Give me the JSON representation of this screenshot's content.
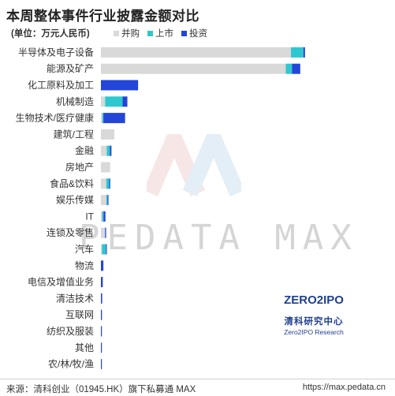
{
  "title": "本周整体事件行业披露金额对比",
  "unit_label": "(单位：万元人民币)",
  "footer": {
    "source": "来源：清科创业（01945.HK）旗下私募通 MAX",
    "url": "https://max.pedata.cn"
  },
  "watermark": {
    "text": "PEDATA MAX"
  },
  "brand": {
    "logo_text": "ZERO2IPO",
    "name_cn": "清科研究中心",
    "name_en": "Zero2IPO Research"
  },
  "colors": {
    "并购": "#d9d9d9",
    "上市": "#2fc7cf",
    "投资": "#2346d8"
  },
  "chart_data": {
    "type": "bar",
    "orientation": "horizontal",
    "stacked": true,
    "title": "本周整体事件行业披露金额对比",
    "unit": "(单位：万元人民币)",
    "legend_position": "top",
    "grid": false,
    "xlim": [
      0,
      100
    ],
    "categories": [
      "半导体及电子设备",
      "能源及矿产",
      "化工原料及加工",
      "机械制造",
      "生物技术/医疗健康",
      "建筑/工程",
      "金融",
      "房地产",
      "食品&饮料",
      "娱乐传媒",
      "IT",
      "连锁及零售",
      "汽车",
      "物流",
      "电信及增值业务",
      "清洁技术",
      "互联网",
      "纺织及服装",
      "其他",
      "农/林/牧/渔"
    ],
    "series": [
      {
        "name": "并购",
        "values": [
          92.0,
          89.5,
          0,
          2.0,
          0.7,
          6.5,
          2.8,
          4.5,
          2.6,
          2.6,
          0.6,
          2.0,
          0.5,
          0,
          0,
          0,
          0,
          0,
          0,
          0
        ]
      },
      {
        "name": "上市",
        "values": [
          6.0,
          3.0,
          0,
          8.5,
          0.5,
          0,
          1.5,
          0,
          1.4,
          0.6,
          0.7,
          0,
          1.9,
          0,
          0,
          0,
          0,
          0,
          0,
          0
        ]
      },
      {
        "name": "投资",
        "values": [
          0.8,
          4.0,
          18.0,
          2.3,
          10.5,
          0,
          0.8,
          0,
          0.5,
          0.4,
          0.9,
          0.5,
          0.2,
          1.2,
          0.9,
          0.6,
          0.5,
          0.4,
          0.3,
          0.1
        ]
      }
    ]
  }
}
